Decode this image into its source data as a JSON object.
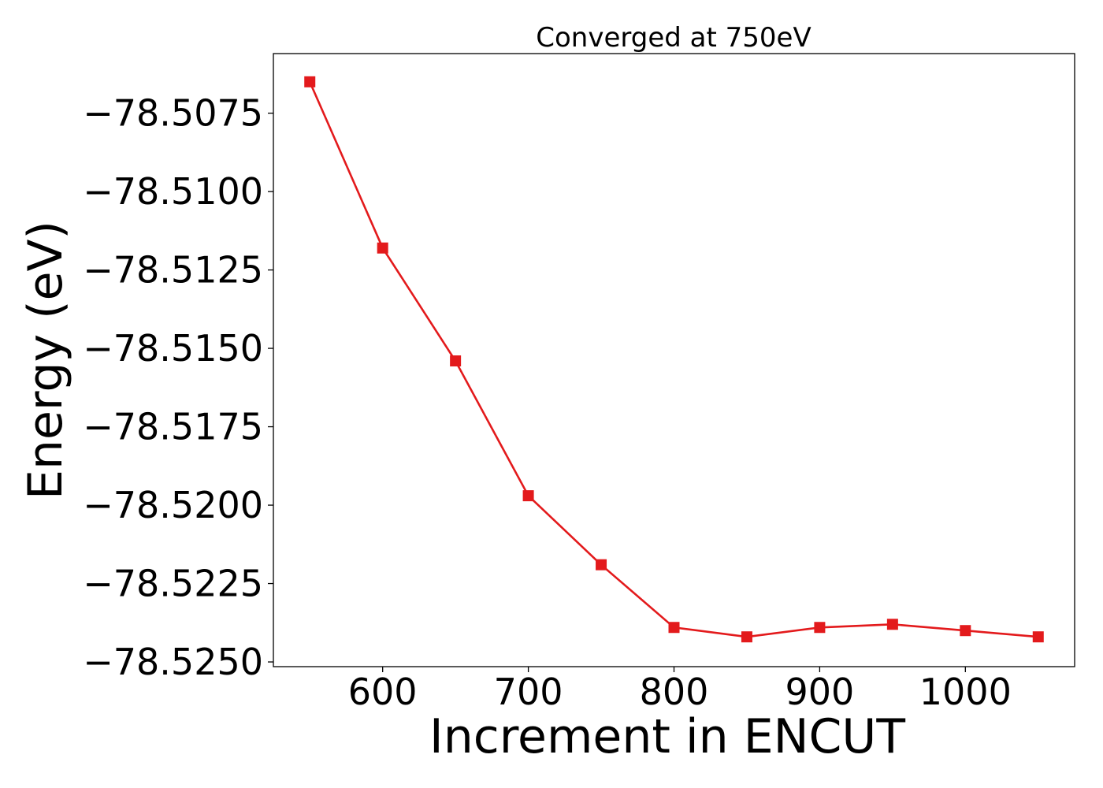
{
  "chart_data": {
    "type": "line",
    "title": "Converged at 750eV",
    "xlabel": "Increment in ENCUT",
    "ylabel": "Energy (eV)",
    "x": [
      550,
      600,
      650,
      700,
      750,
      800,
      850,
      900,
      950,
      1000,
      1050
    ],
    "series": [
      {
        "values": [
          -78.5065,
          -78.5118,
          -78.5154,
          -78.5197,
          -78.5219,
          -78.5239,
          -78.5242,
          -78.5239,
          -78.5238,
          -78.524,
          -78.5242
        ],
        "color": "#e31a1c",
        "marker": "square"
      }
    ],
    "xlim": [
      525,
      1075
    ],
    "ylim": [
      -78.52515,
      -78.5056
    ],
    "xticks": [
      600,
      700,
      800,
      900,
      1000
    ],
    "xtick_labels": [
      "600",
      "700",
      "800",
      "900",
      "1000"
    ],
    "yticks": [
      -78.5075,
      -78.51,
      -78.5125,
      -78.515,
      -78.5175,
      -78.52,
      -78.5225,
      -78.525
    ],
    "ytick_labels": [
      "−78.5075",
      "−78.5100",
      "−78.5125",
      "−78.5150",
      "−78.5175",
      "−78.5200",
      "−78.5225",
      "−78.5250"
    ],
    "grid": false,
    "legend": false
  }
}
